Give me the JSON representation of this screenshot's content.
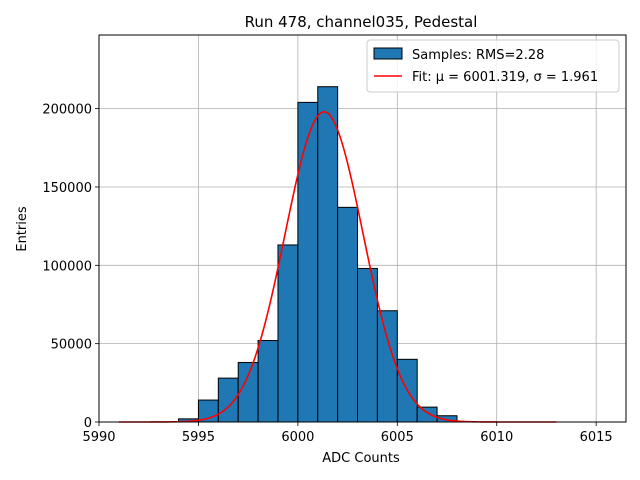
{
  "chart_data": {
    "type": "bar",
    "title": "Run 478, channel035, Pedestal",
    "xlabel": "ADC Counts",
    "ylabel": "Entries",
    "xlim": [
      5990,
      6016.5
    ],
    "ylim": [
      0,
      247000
    ],
    "grid": true,
    "legend_position": "top-right",
    "x_ticks": [
      5990,
      5995,
      6000,
      6005,
      6010,
      6015
    ],
    "y_ticks": [
      0,
      50000,
      100000,
      150000,
      200000
    ],
    "histogram": {
      "name": "Samples: RMS=2.28",
      "color": "#1f77b4",
      "bin_edges": [
        5994,
        5995,
        5996,
        5997,
        5998,
        5999,
        6000,
        6001,
        6002,
        6003,
        6004,
        6005,
        6006,
        6007,
        6008
      ],
      "counts": [
        2000,
        14000,
        28000,
        38000,
        52000,
        113000,
        204000,
        214000,
        137000,
        98000,
        71000,
        40000,
        9500,
        4000
      ]
    },
    "fit": {
      "name": "Fit: μ = 6001.319, σ = 1.961",
      "color": "#ff0000",
      "mu": 6001.319,
      "sigma": 1.961,
      "amplitude": 198000,
      "x_range": [
        5991,
        6013
      ]
    },
    "legend_entries": [
      "Samples: RMS=2.28",
      "Fit: μ = 6001.319, σ = 1.961"
    ]
  }
}
